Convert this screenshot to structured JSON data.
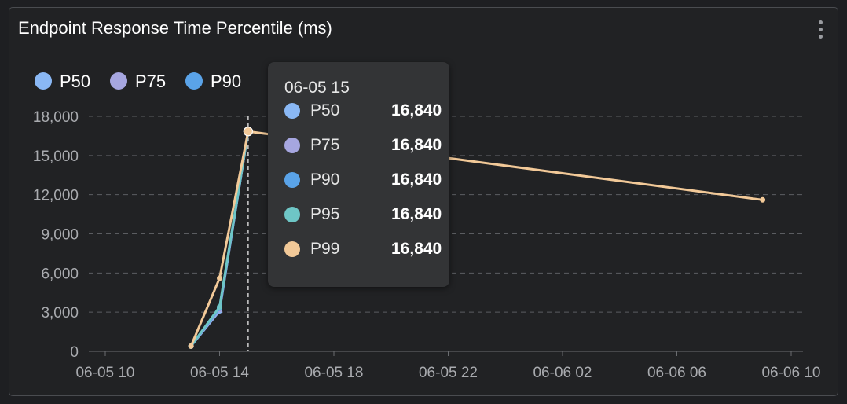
{
  "panel": {
    "title": "Endpoint Response Time Percentile (ms)",
    "menu_icon": "more-vertical-icon"
  },
  "chart_data": {
    "type": "line",
    "title": "Endpoint Response Time Percentile (ms)",
    "xlabel": "",
    "ylabel": "",
    "x_ticks": [
      "06-05 10",
      "06-05 14",
      "06-05 18",
      "06-05 22",
      "06-06 02",
      "06-06 06",
      "06-06 10"
    ],
    "y_ticks": [
      "0",
      "3,000",
      "6,000",
      "9,000",
      "12,000",
      "15,000",
      "18,000"
    ],
    "ylim": [
      0,
      18000
    ],
    "grid": true,
    "legend_position": "top-left",
    "x": [
      "06-05 13",
      "06-05 14",
      "06-05 15",
      "06-06 09"
    ],
    "series": [
      {
        "name": "P50",
        "color": "#8ab8f5",
        "values": [
          400,
          3100,
          16840,
          null
        ]
      },
      {
        "name": "P75",
        "color": "#a6a6e0",
        "values": [
          400,
          3200,
          16840,
          null
        ]
      },
      {
        "name": "P90",
        "color": "#5aa3e8",
        "values": [
          400,
          3300,
          16840,
          null
        ]
      },
      {
        "name": "P95",
        "color": "#6ec6c6",
        "values": [
          400,
          3400,
          16840,
          null
        ]
      },
      {
        "name": "P99",
        "color": "#f2c998",
        "values": [
          400,
          5600,
          16840,
          11600
        ]
      }
    ],
    "cursor_x": "06-05 15"
  },
  "tooltip": {
    "title": "06-05 15",
    "rows": [
      {
        "name": "P50",
        "value": "16,840",
        "color": "#8ab8f5"
      },
      {
        "name": "P75",
        "value": "16,840",
        "color": "#a6a6e0"
      },
      {
        "name": "P90",
        "value": "16,840",
        "color": "#5aa3e8"
      },
      {
        "name": "P95",
        "value": "16,840",
        "color": "#6ec6c6"
      },
      {
        "name": "P99",
        "value": "16,840",
        "color": "#f2c998"
      }
    ]
  }
}
